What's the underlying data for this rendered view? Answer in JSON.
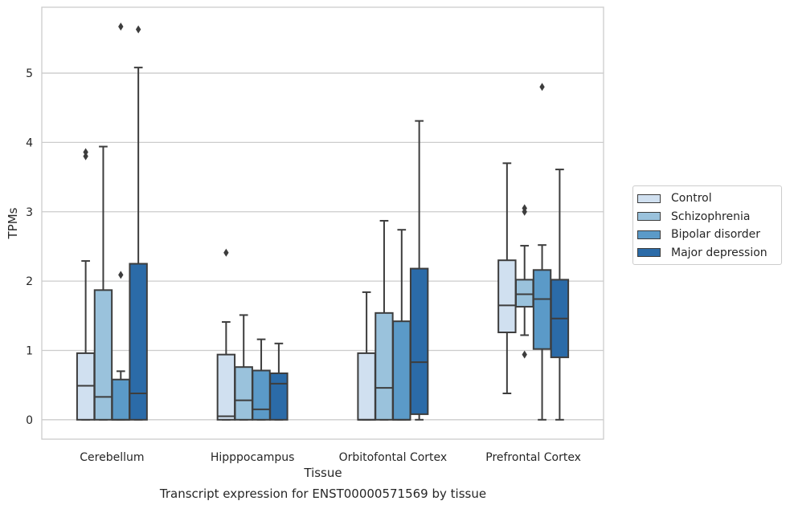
{
  "caption": "Transcript expression for ENST00000571569 by tissue",
  "chart_data": {
    "type": "box",
    "xlabel": "Tissue",
    "ylabel": "TPMs",
    "ylim": [
      -0.28,
      5.95
    ],
    "yticks": [
      0,
      1,
      2,
      3,
      4,
      5
    ],
    "grid": "horizontal",
    "legend_placement": "right",
    "categories": [
      "Cerebellum",
      "Hipppocampus",
      "Orbitofontal Cortex",
      "Prefrontal Cortex"
    ],
    "series": [
      {
        "name": "Control",
        "color": "#d0e0f0",
        "boxes": [
          {
            "whislo": 0.0,
            "q1": 0.0,
            "med": 0.49,
            "q3": 0.96,
            "whishi": 2.29,
            "fliers": [
              3.8,
              3.86
            ]
          },
          {
            "whislo": 0.0,
            "q1": 0.0,
            "med": 0.05,
            "q3": 0.94,
            "whishi": 1.41,
            "fliers": [
              2.41
            ]
          },
          {
            "whislo": 0.0,
            "q1": 0.0,
            "med": 0.0,
            "q3": 0.96,
            "whishi": 1.84,
            "fliers": []
          },
          {
            "whislo": 0.38,
            "q1": 1.26,
            "med": 1.65,
            "q3": 2.3,
            "whishi": 3.7,
            "fliers": []
          }
        ]
      },
      {
        "name": "Schizophrenia",
        "color": "#9ac2dc",
        "boxes": [
          {
            "whislo": 0.0,
            "q1": 0.0,
            "med": 0.33,
            "q3": 1.87,
            "whishi": 3.94,
            "fliers": []
          },
          {
            "whislo": 0.0,
            "q1": 0.0,
            "med": 0.28,
            "q3": 0.76,
            "whishi": 1.51,
            "fliers": []
          },
          {
            "whislo": 0.0,
            "q1": 0.0,
            "med": 0.46,
            "q3": 1.54,
            "whishi": 2.87,
            "fliers": []
          },
          {
            "whislo": 1.22,
            "q1": 1.63,
            "med": 1.81,
            "q3": 2.02,
            "whishi": 2.51,
            "fliers": [
              0.94,
              3.0,
              3.05
            ]
          }
        ]
      },
      {
        "name": "Bipolar disorder",
        "color": "#5b9ac8",
        "boxes": [
          {
            "whislo": 0.0,
            "q1": 0.0,
            "med": 0.0,
            "q3": 0.58,
            "whishi": 0.7,
            "fliers": [
              2.09,
              5.67
            ]
          },
          {
            "whislo": 0.0,
            "q1": 0.0,
            "med": 0.15,
            "q3": 0.71,
            "whishi": 1.16,
            "fliers": []
          },
          {
            "whislo": 0.0,
            "q1": 0.0,
            "med": 0.0,
            "q3": 1.42,
            "whishi": 2.74,
            "fliers": []
          },
          {
            "whislo": 0.0,
            "q1": 1.02,
            "med": 1.74,
            "q3": 2.16,
            "whishi": 2.52,
            "fliers": [
              4.8
            ]
          }
        ]
      },
      {
        "name": "Major depression",
        "color": "#2b6ba8",
        "boxes": [
          {
            "whislo": 0.0,
            "q1": 0.0,
            "med": 0.38,
            "q3": 2.25,
            "whishi": 5.08,
            "fliers": [
              5.63
            ]
          },
          {
            "whislo": 0.0,
            "q1": 0.0,
            "med": 0.52,
            "q3": 0.67,
            "whishi": 1.1,
            "fliers": []
          },
          {
            "whislo": 0.0,
            "q1": 0.08,
            "med": 0.83,
            "q3": 2.18,
            "whishi": 4.31,
            "fliers": []
          },
          {
            "whislo": 0.0,
            "q1": 0.9,
            "med": 1.46,
            "q3": 2.02,
            "whishi": 3.61,
            "fliers": []
          }
        ]
      }
    ]
  }
}
